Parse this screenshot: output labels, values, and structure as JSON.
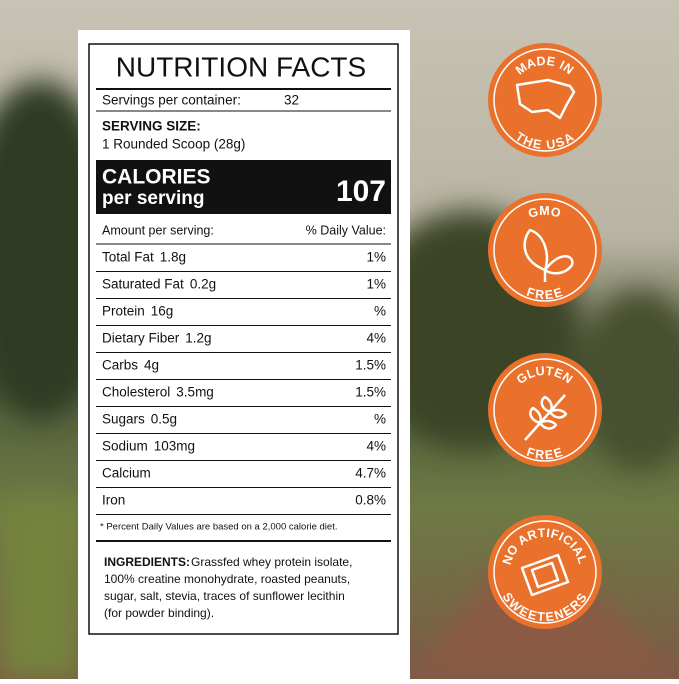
{
  "label": {
    "title": "NUTRITION FACTS",
    "servings_label": "Servings per container:",
    "servings": 32,
    "serving_size_label": "SERVING SIZE:",
    "serving_size": "1 Rounded Scoop (28g)",
    "calories_label": [
      "CALORIES",
      "per serving"
    ],
    "calories": 107,
    "amount_header": "Amount per serving:",
    "dv_header": "% Daily Value:",
    "rows": [
      {
        "name": "Total Fat",
        "amount": "1.8g",
        "dv": "1%"
      },
      {
        "name": "Saturated Fat",
        "amount": "0.2g",
        "dv": "1%"
      },
      {
        "name": "Protein",
        "amount": "16g",
        "dv": "%"
      },
      {
        "name": "Dietary Fiber",
        "amount": "1.2g",
        "dv": "4%"
      },
      {
        "name": "Carbs",
        "amount": "4g",
        "dv": "1.5%"
      },
      {
        "name": "Cholesterol",
        "amount": "3.5mg",
        "dv": "1.5%"
      },
      {
        "name": "Sugars",
        "amount": "0.5g",
        "dv": "%"
      },
      {
        "name": "Sodium",
        "amount": "103mg",
        "dv": "4%"
      },
      {
        "name": "Calcium",
        "dv": "4.7%"
      },
      {
        "name": "Iron",
        "dv": "0.8%"
      }
    ],
    "footnote": "* Percent Daily Values are based on a 2,000 calorie diet.",
    "ingredients_label": "INGREDIENTS:",
    "ingredients": [
      "Grassfed whey protein isolate,",
      "100% creatine monohydrate, roasted peanuts,",
      "sugar, salt, stevia, traces of sunflower lecithin",
      "(for powder binding)."
    ]
  },
  "badges": [
    {
      "top": "MADE IN",
      "bottom": "THE USA"
    },
    {
      "top": "GMO",
      "bottom": "FREE"
    },
    {
      "top": "GLUTEN",
      "bottom": "FREE"
    },
    {
      "top": "NO ARTIFICIAL",
      "bottom": "SWEETENERS"
    }
  ]
}
